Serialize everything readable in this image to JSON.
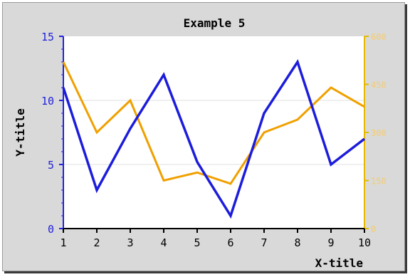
{
  "colors": {
    "left_axis": "#2222dd",
    "right_axis": "#e6b800",
    "series_blue": "#1c1cdc",
    "series_orange": "#f0a000",
    "plot_bg": "#ffffff",
    "frame_bg": "#d9d9d9"
  },
  "chart_data": {
    "type": "line",
    "title": "Example 5",
    "xlabel": "X-title",
    "ylabel": "Y-title",
    "x": [
      1,
      2,
      3,
      4,
      5,
      6,
      7,
      8,
      9,
      10
    ],
    "xlim": [
      1,
      10
    ],
    "ylim": [
      0,
      15
    ],
    "y_ticks": [
      0,
      5,
      10,
      15
    ],
    "y2lim": [
      0,
      600
    ],
    "y2_ticks": [
      0,
      150,
      300,
      450,
      600
    ],
    "grid": true,
    "series": [
      {
        "axis": "left",
        "values": [
          11,
          3,
          7.8,
          12,
          5.2,
          1,
          9,
          13,
          5,
          7
        ]
      },
      {
        "axis": "right",
        "values": [
          520,
          300,
          400,
          150,
          175,
          140,
          300,
          340,
          440,
          380
        ]
      }
    ]
  }
}
